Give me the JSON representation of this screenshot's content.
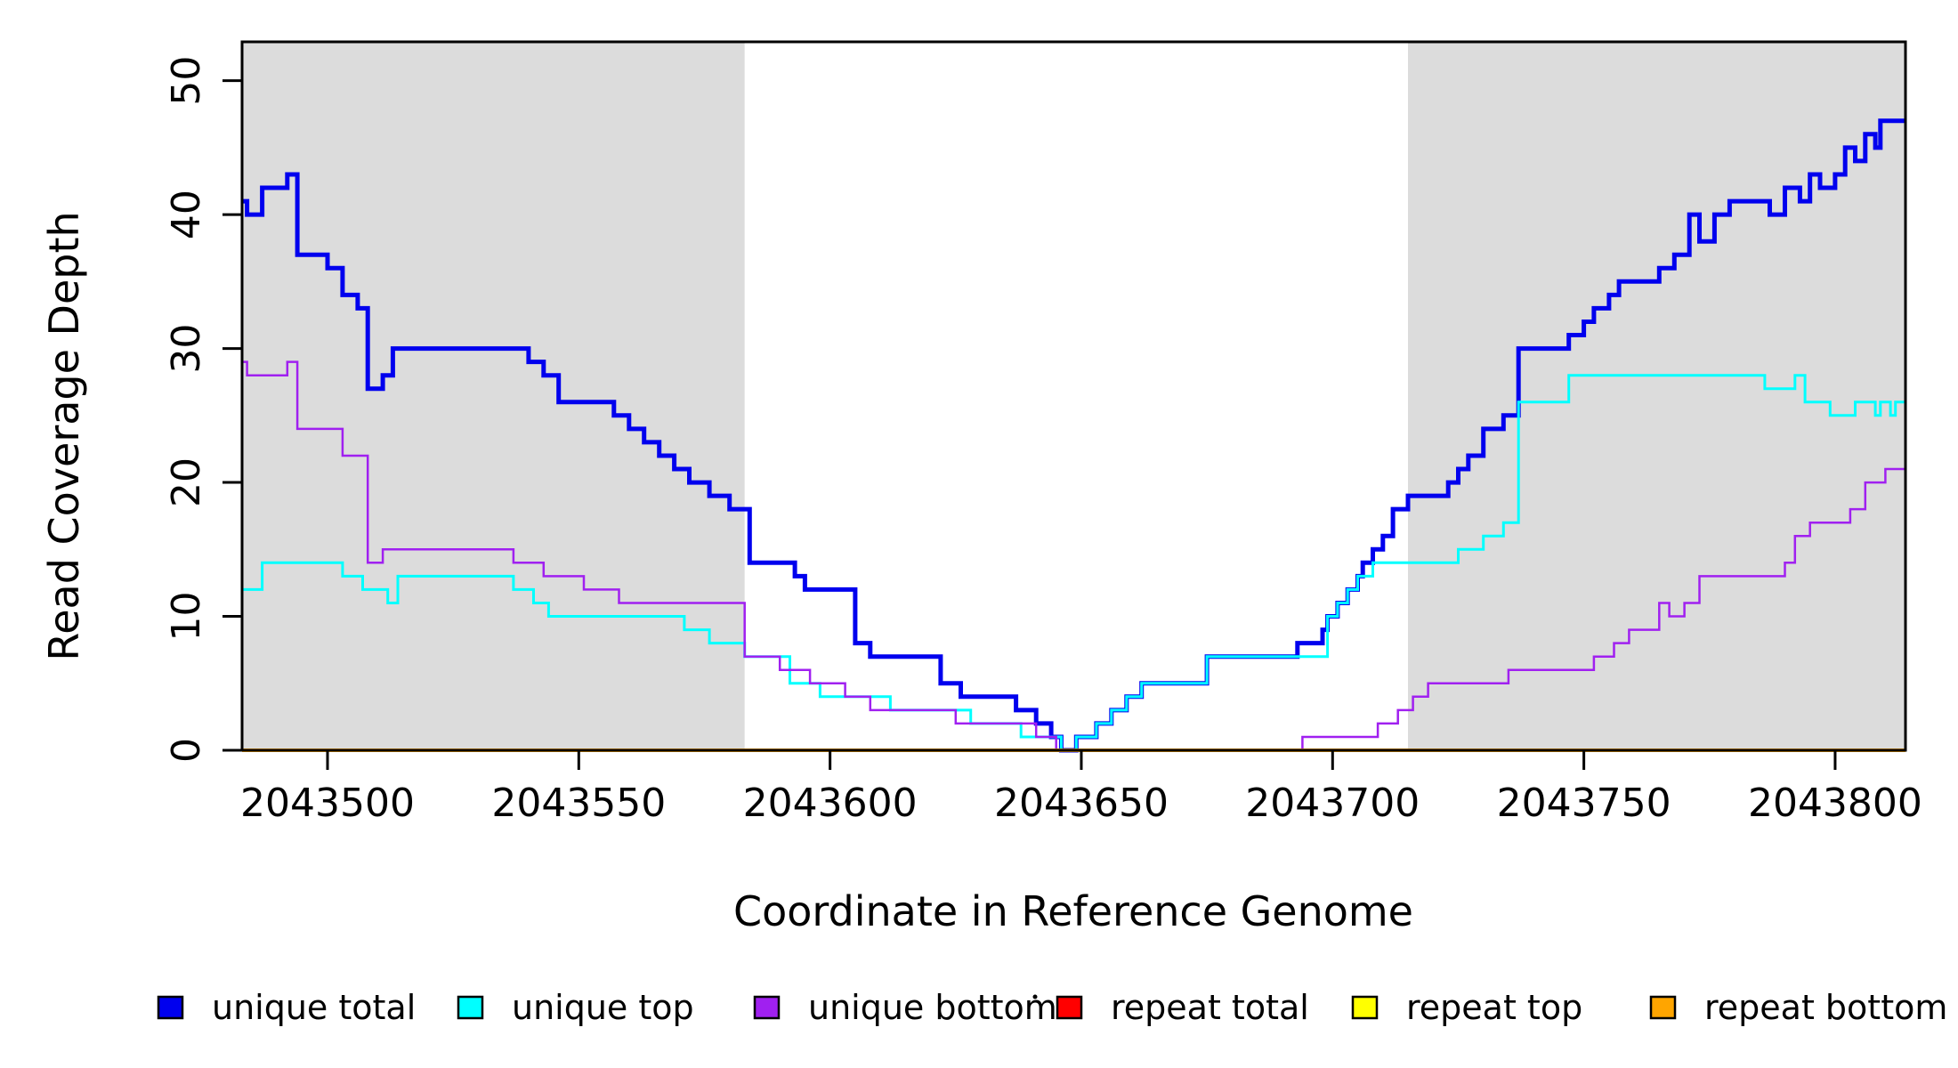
{
  "chart_data": {
    "type": "line",
    "subtype": "step-after",
    "title": "",
    "xlabel": "Coordinate in Reference Genome",
    "ylabel": "Read Coverage Depth",
    "x_range": [
      2043483,
      2043814
    ],
    "y_range": [
      0,
      52.9
    ],
    "x_ticks": [
      2043500,
      2043550,
      2043600,
      2043650,
      2043700,
      2043750,
      2043800
    ],
    "x_tick_labels": [
      "2043500",
      "2043550",
      "2043600",
      "2043650",
      "2043700",
      "2043750",
      "2043800"
    ],
    "y_ticks": [
      0,
      10,
      20,
      30,
      40,
      50
    ],
    "y_tick_labels": [
      "0",
      "10",
      "20",
      "30",
      "40",
      "50"
    ],
    "grid": false,
    "legend_position": "bottom",
    "background_bands": [
      {
        "name": "left-gray-band",
        "x1": 2043483,
        "x2": 2043583,
        "color": "#dcdcdc"
      },
      {
        "name": "right-gray-band",
        "x1": 2043715,
        "x2": 2043814,
        "color": "#dcdcdc"
      }
    ],
    "series": [
      {
        "name": "unique total",
        "color": "#0000ee",
        "width": 5,
        "points": [
          [
            2043483,
            41
          ],
          [
            2043484,
            40
          ],
          [
            2043487,
            42
          ],
          [
            2043492,
            43
          ],
          [
            2043494,
            37
          ],
          [
            2043500,
            36
          ],
          [
            2043503,
            34
          ],
          [
            2043506,
            33
          ],
          [
            2043508,
            27
          ],
          [
            2043511,
            28
          ],
          [
            2043513,
            30
          ],
          [
            2043540,
            29
          ],
          [
            2043543,
            28
          ],
          [
            2043546,
            26
          ],
          [
            2043557,
            25
          ],
          [
            2043560,
            24
          ],
          [
            2043563,
            23
          ],
          [
            2043566,
            22
          ],
          [
            2043569,
            21
          ],
          [
            2043572,
            20
          ],
          [
            2043576,
            19
          ],
          [
            2043580,
            18
          ],
          [
            2043584,
            14
          ],
          [
            2043593,
            13
          ],
          [
            2043595,
            12
          ],
          [
            2043605,
            8
          ],
          [
            2043608,
            7
          ],
          [
            2043622,
            5
          ],
          [
            2043626,
            4
          ],
          [
            2043637,
            3
          ],
          [
            2043641,
            2
          ],
          [
            2043644,
            1
          ],
          [
            2043646,
            0
          ],
          [
            2043649,
            1
          ],
          [
            2043653,
            2
          ],
          [
            2043656,
            3
          ],
          [
            2043659,
            4
          ],
          [
            2043662,
            5
          ],
          [
            2043675,
            7
          ],
          [
            2043693,
            8
          ],
          [
            2043698,
            9
          ],
          [
            2043699,
            10
          ],
          [
            2043701,
            11
          ],
          [
            2043703,
            12
          ],
          [
            2043705,
            13
          ],
          [
            2043706,
            14
          ],
          [
            2043708,
            15
          ],
          [
            2043710,
            16
          ],
          [
            2043712,
            18
          ],
          [
            2043715,
            19
          ],
          [
            2043723,
            20
          ],
          [
            2043725,
            21
          ],
          [
            2043727,
            22
          ],
          [
            2043730,
            24
          ],
          [
            2043734,
            25
          ],
          [
            2043737,
            30
          ],
          [
            2043747,
            31
          ],
          [
            2043750,
            32
          ],
          [
            2043752,
            33
          ],
          [
            2043755,
            34
          ],
          [
            2043757,
            35
          ],
          [
            2043765,
            36
          ],
          [
            2043768,
            37
          ],
          [
            2043771,
            40
          ],
          [
            2043773,
            38
          ],
          [
            2043776,
            40
          ],
          [
            2043779,
            41
          ],
          [
            2043787,
            40
          ],
          [
            2043790,
            42
          ],
          [
            2043793,
            41
          ],
          [
            2043795,
            43
          ],
          [
            2043797,
            42
          ],
          [
            2043800,
            43
          ],
          [
            2043802,
            45
          ],
          [
            2043804,
            44
          ],
          [
            2043806,
            46
          ],
          [
            2043808,
            45
          ],
          [
            2043809,
            47
          ],
          [
            2043814,
            47
          ]
        ]
      },
      {
        "name": "unique top",
        "color": "#00ffff",
        "width": 3,
        "points": [
          [
            2043483,
            12
          ],
          [
            2043487,
            14
          ],
          [
            2043503,
            13
          ],
          [
            2043507,
            12
          ],
          [
            2043512,
            11
          ],
          [
            2043514,
            13
          ],
          [
            2043537,
            12
          ],
          [
            2043541,
            11
          ],
          [
            2043544,
            10
          ],
          [
            2043571,
            9
          ],
          [
            2043576,
            8
          ],
          [
            2043583,
            7
          ],
          [
            2043592,
            5
          ],
          [
            2043598,
            4
          ],
          [
            2043612,
            3
          ],
          [
            2043628,
            2
          ],
          [
            2043638,
            1
          ],
          [
            2043646,
            0
          ],
          [
            2043649,
            1
          ],
          [
            2043653,
            2
          ],
          [
            2043656,
            3
          ],
          [
            2043659,
            4
          ],
          [
            2043662,
            5
          ],
          [
            2043675,
            7
          ],
          [
            2043699,
            10
          ],
          [
            2043701,
            11
          ],
          [
            2043703,
            12
          ],
          [
            2043705,
            13
          ],
          [
            2043708,
            14
          ],
          [
            2043725,
            15
          ],
          [
            2043730,
            16
          ],
          [
            2043734,
            17
          ],
          [
            2043737,
            26
          ],
          [
            2043747,
            28
          ],
          [
            2043786,
            27
          ],
          [
            2043792,
            28
          ],
          [
            2043794,
            26
          ],
          [
            2043799,
            25
          ],
          [
            2043804,
            26
          ],
          [
            2043808,
            25
          ],
          [
            2043809,
            26
          ],
          [
            2043811,
            25
          ],
          [
            2043812,
            26
          ],
          [
            2043814,
            26
          ]
        ]
      },
      {
        "name": "unique bottom",
        "color": "#a020f0",
        "width": 2.5,
        "points": [
          [
            2043483,
            29
          ],
          [
            2043484,
            28
          ],
          [
            2043492,
            29
          ],
          [
            2043494,
            24
          ],
          [
            2043503,
            22
          ],
          [
            2043508,
            14
          ],
          [
            2043511,
            15
          ],
          [
            2043537,
            14
          ],
          [
            2043543,
            13
          ],
          [
            2043551,
            12
          ],
          [
            2043558,
            11
          ],
          [
            2043583,
            7
          ],
          [
            2043590,
            6
          ],
          [
            2043596,
            5
          ],
          [
            2043603,
            4
          ],
          [
            2043608,
            3
          ],
          [
            2043625,
            2
          ],
          [
            2043641,
            1
          ],
          [
            2043645,
            0
          ],
          [
            2043694,
            1
          ],
          [
            2043709,
            2
          ],
          [
            2043713,
            3
          ],
          [
            2043716,
            4
          ],
          [
            2043719,
            5
          ],
          [
            2043735,
            6
          ],
          [
            2043752,
            7
          ],
          [
            2043756,
            8
          ],
          [
            2043759,
            9
          ],
          [
            2043765,
            11
          ],
          [
            2043767,
            10
          ],
          [
            2043770,
            11
          ],
          [
            2043773,
            13
          ],
          [
            2043790,
            14
          ],
          [
            2043792,
            16
          ],
          [
            2043795,
            17
          ],
          [
            2043803,
            18
          ],
          [
            2043806,
            20
          ],
          [
            2043810,
            21
          ],
          [
            2043814,
            21
          ]
        ]
      },
      {
        "name": "repeat total",
        "color": "#ff0000",
        "width": 3,
        "points": [
          [
            2043483,
            0
          ],
          [
            2043814,
            0
          ]
        ]
      },
      {
        "name": "repeat top",
        "color": "#ffff00",
        "width": 3,
        "points": [
          [
            2043483,
            0
          ],
          [
            2043814,
            0
          ]
        ]
      },
      {
        "name": "repeat bottom",
        "color": "#ffa500",
        "width": 4,
        "points": [
          [
            2043483,
            0
          ],
          [
            2043814,
            0
          ]
        ]
      }
    ],
    "legend": [
      {
        "label": "unique total",
        "color": "#0000ee"
      },
      {
        "label": "unique top",
        "color": "#00ffff"
      },
      {
        "label": "unique bottom",
        "color": "#a020f0"
      },
      {
        "label": "repeat total",
        "color": "#ff0000"
      },
      {
        "label": "repeat top",
        "color": "#ffff00"
      },
      {
        "label": "repeat bottom",
        "color": "#ffa500"
      }
    ]
  }
}
